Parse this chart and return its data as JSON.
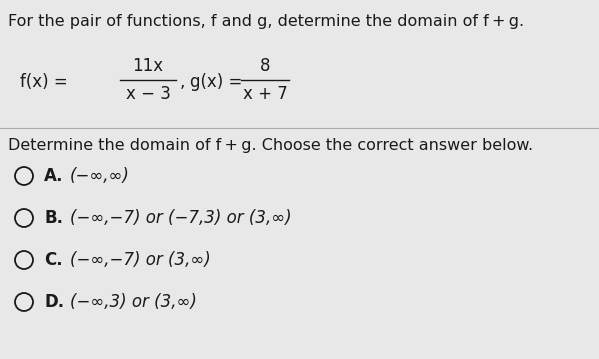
{
  "background_color": "#e8e8e8",
  "title_text": "For the pair of functions, f and g, determine the domain of f + g.",
  "f_numerator": "11x",
  "f_denominator": "x − 3",
  "g_numerator": "8",
  "g_denominator": "x + 7",
  "question_text": "Determine the domain of f + g. Choose the correct answer below.",
  "options": [
    {
      "label": "A.",
      "text": "(−∞,∞)"
    },
    {
      "label": "B.",
      "text": "(−∞,−7) or (−7,3) or (3,∞)"
    },
    {
      "label": "C.",
      "text": "(−∞,−7) or (3,∞)"
    },
    {
      "label": "D.",
      "text": "(−∞,3) or (3,∞)"
    }
  ],
  "font_color": "#1a1a1a",
  "title_fontsize": 11.5,
  "body_fontsize": 12,
  "option_fontsize": 12
}
